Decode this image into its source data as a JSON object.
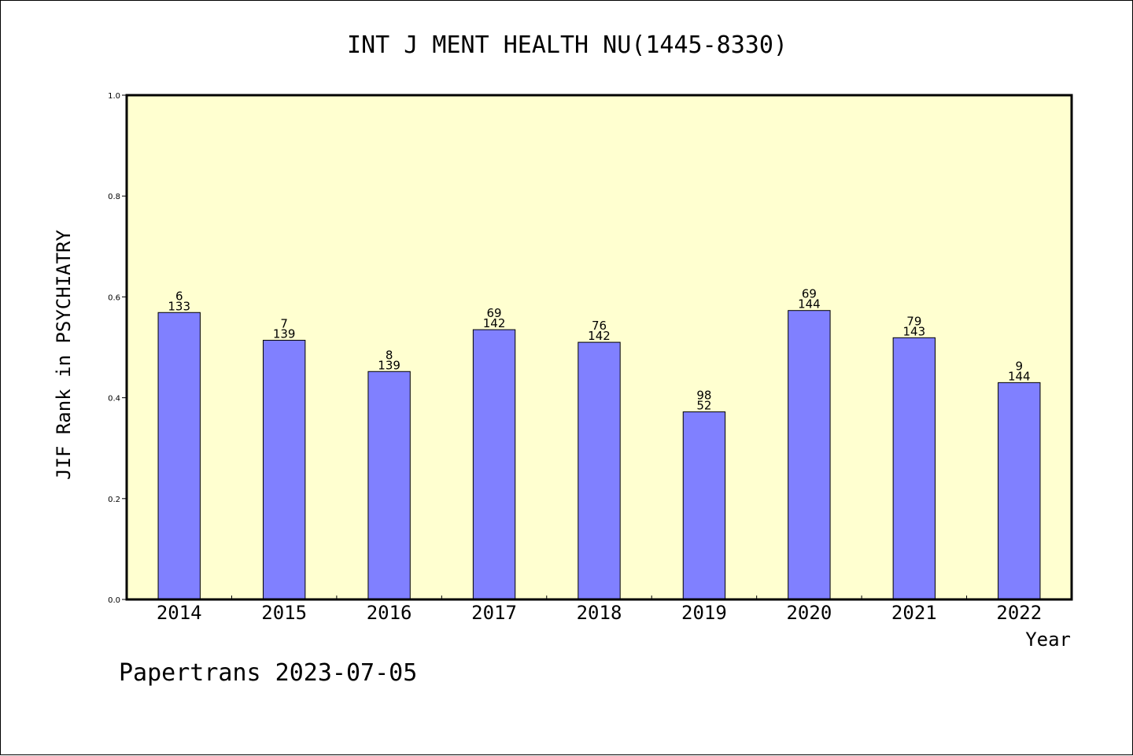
{
  "chart_data": {
    "type": "bar",
    "title": "INT J MENT HEALTH NU(1445-8330)",
    "xlabel": "Year",
    "ylabel": "JIF Rank in PSYCHIATRY",
    "ylim": [
      0,
      1.0
    ],
    "yticks": [
      "0.0",
      "0.2",
      "0.4",
      "0.6",
      "0.8",
      "1.0"
    ],
    "categories": [
      "2014",
      "2015",
      "2016",
      "2017",
      "2018",
      "2019",
      "2020",
      "2021",
      "2022"
    ],
    "values": [
      0.569,
      0.514,
      0.452,
      0.535,
      0.51,
      0.372,
      0.573,
      0.519,
      0.43
    ],
    "labels_top": [
      "6",
      "7",
      "8",
      "69",
      "76",
      "98",
      "69",
      "79",
      "9"
    ],
    "labels_bottom": [
      "133",
      "139",
      "139",
      "142",
      "142",
      "52",
      "144",
      "143",
      "144"
    ],
    "colors": {
      "bar": "#8080ff",
      "plot_bg": "#ffffd0"
    }
  },
  "footer": "Papertrans 2023-07-05"
}
